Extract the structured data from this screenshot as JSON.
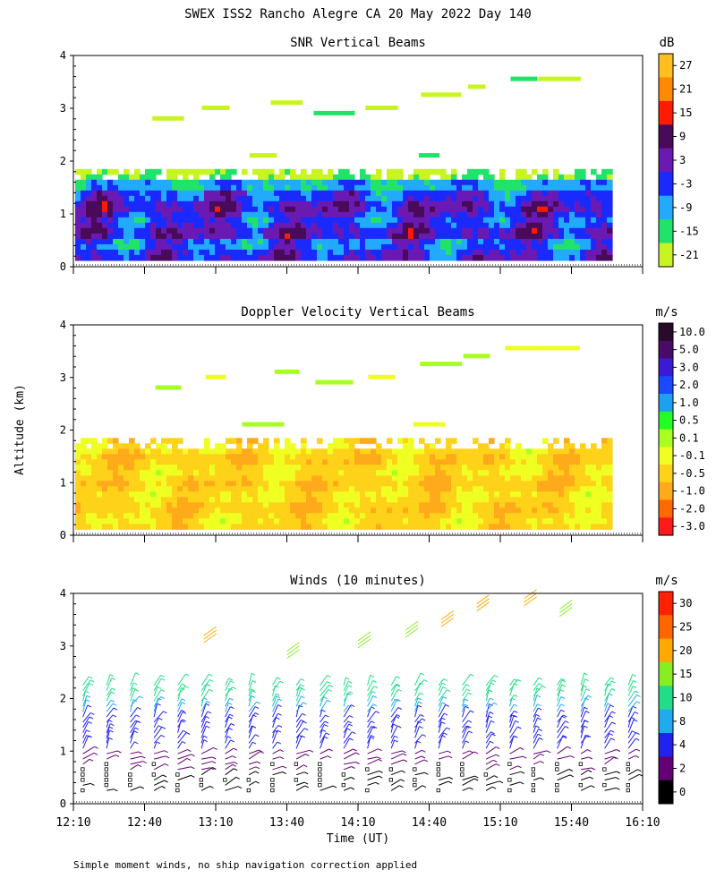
{
  "title": "SWEX ISS2 Rancho Alegre CA  20 May 2022 Day 140",
  "shared_ylabel": "Altitude (km)",
  "xlabel": "Time (UT)",
  "footnote": "Simple moment winds, no ship navigation correction applied",
  "x_ticks": [
    "12:10",
    "12:40",
    "13:10",
    "13:40",
    "14:10",
    "14:40",
    "15:10",
    "15:40",
    "16:10"
  ],
  "chart_data": [
    {
      "type": "heatmap",
      "title": "SNR Vertical Beams",
      "units": "dB",
      "xlim": [
        "12:10",
        "16:10"
      ],
      "ylim": [
        0,
        4
      ],
      "y_ticks": [
        "4",
        "3",
        "2",
        "1",
        "0"
      ],
      "colorbar": {
        "labels": [
          "27",
          "21",
          "15",
          "9",
          "3",
          "-3",
          "-9",
          "-15",
          "-21"
        ],
        "colors": [
          "#ffbf1f",
          "#ff8a00",
          "#ff1a00",
          "#4a0a5a",
          "#6a1ab2",
          "#1a2aff",
          "#22aaff",
          "#22e36a",
          "#c8f522"
        ]
      }
    },
    {
      "type": "heatmap",
      "title": "Doppler Velocity Vertical Beams",
      "units": "m/s",
      "xlim": [
        "12:10",
        "16:10"
      ],
      "ylim": [
        0,
        4
      ],
      "y_ticks": [
        "4",
        "3",
        "2",
        "1",
        "0"
      ],
      "colorbar": {
        "labels": [
          "10.0",
          "5.0",
          "3.0",
          "2.0",
          "1.0",
          "0.5",
          "0.1",
          "-0.1",
          "-0.5",
          "-1.0",
          "-2.0",
          "-3.0"
        ],
        "colors": [
          "#2a0a2a",
          "#4a0a6a",
          "#3a1ad2",
          "#1a4aff",
          "#1ea0f0",
          "#22ff22",
          "#a8ff22",
          "#f0ff22",
          "#ffd21a",
          "#ffaa1a",
          "#ff6a00",
          "#ff1a1a"
        ]
      }
    },
    {
      "type": "scatter",
      "title": "Winds (10 minutes)",
      "units": "m/s",
      "xlim": [
        "12:10",
        "16:10"
      ],
      "ylim": [
        0,
        4
      ],
      "y_ticks": [
        "4",
        "3",
        "2",
        "1",
        "0"
      ],
      "colorbar": {
        "labels": [
          "30",
          "25",
          "20",
          "15",
          "10",
          "8",
          "4",
          "2",
          "0"
        ],
        "colors": [
          "#ff2200",
          "#ff6600",
          "#ffaa00",
          "#88ee22",
          "#22dd88",
          "#22aaee",
          "#2222ee",
          "#660077",
          "#000000"
        ]
      }
    }
  ]
}
